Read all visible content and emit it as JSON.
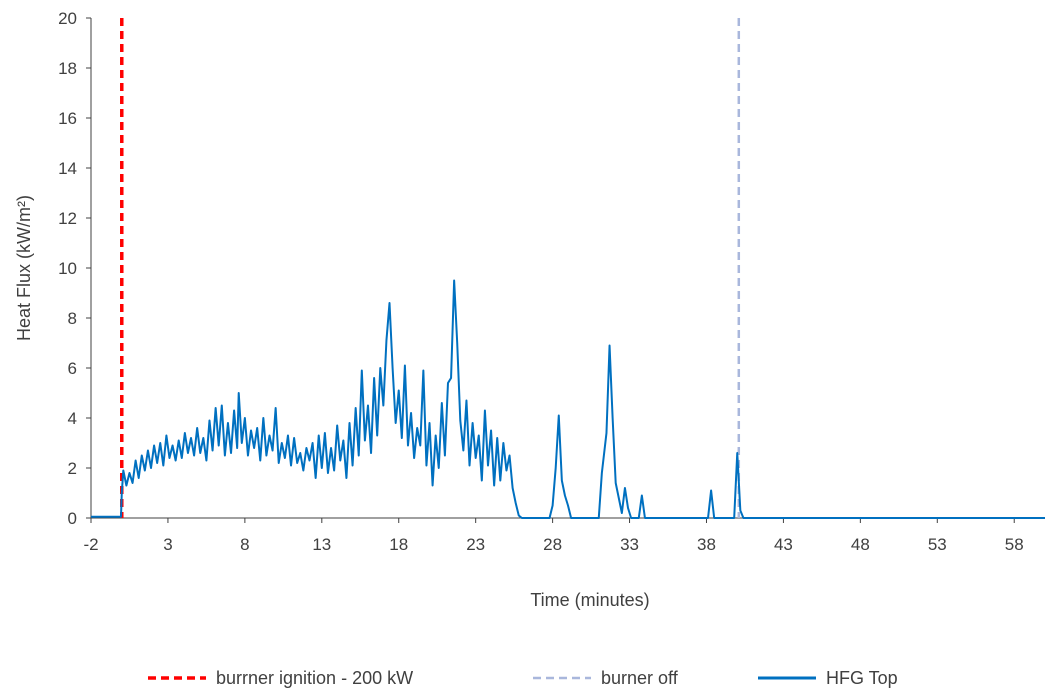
{
  "chart_data": {
    "type": "line",
    "xlabel": "Time (minutes)",
    "ylabel": "Heat Flux (kW/m²)",
    "xlim": [
      -2,
      60
    ],
    "ylim": [
      0,
      20
    ],
    "x_ticks": [
      "-2",
      "3",
      "8",
      "13",
      "18",
      "23",
      "28",
      "33",
      "38",
      "43",
      "48",
      "53",
      "58"
    ],
    "y_ticks": [
      "0",
      "2",
      "4",
      "6",
      "8",
      "10",
      "12",
      "14",
      "16",
      "18",
      "20"
    ],
    "grid": false,
    "legend_position": "bottom",
    "series": [
      {
        "name": "burrner ignition - 200 kW",
        "kind": "vline",
        "x": 0,
        "color": "#ff0000",
        "style": "dashed"
      },
      {
        "name": "burner off",
        "kind": "vline",
        "x": 40.1,
        "color": "#a9b7dc",
        "style": "dashed"
      },
      {
        "name": "HFG Top",
        "kind": "line",
        "color": "#0070c0",
        "style": "solid",
        "points": [
          [
            -2,
            0.05
          ],
          [
            -1,
            0.05
          ],
          [
            -0.05,
            0.05
          ],
          [
            0,
            1.0
          ],
          [
            0.1,
            1.9
          ],
          [
            0.3,
            1.3
          ],
          [
            0.5,
            1.8
          ],
          [
            0.7,
            1.4
          ],
          [
            0.9,
            2.3
          ],
          [
            1.1,
            1.6
          ],
          [
            1.3,
            2.5
          ],
          [
            1.5,
            1.9
          ],
          [
            1.7,
            2.7
          ],
          [
            1.9,
            2.0
          ],
          [
            2.1,
            2.9
          ],
          [
            2.3,
            2.2
          ],
          [
            2.5,
            3.0
          ],
          [
            2.7,
            2.1
          ],
          [
            2.9,
            3.3
          ],
          [
            3.1,
            2.4
          ],
          [
            3.3,
            2.9
          ],
          [
            3.5,
            2.3
          ],
          [
            3.7,
            3.1
          ],
          [
            3.9,
            2.4
          ],
          [
            4.1,
            3.4
          ],
          [
            4.3,
            2.6
          ],
          [
            4.5,
            3.2
          ],
          [
            4.7,
            2.5
          ],
          [
            4.9,
            3.6
          ],
          [
            5.1,
            2.6
          ],
          [
            5.3,
            3.2
          ],
          [
            5.5,
            2.3
          ],
          [
            5.7,
            3.9
          ],
          [
            5.9,
            2.7
          ],
          [
            6.1,
            4.4
          ],
          [
            6.3,
            2.9
          ],
          [
            6.5,
            4.5
          ],
          [
            6.7,
            2.5
          ],
          [
            6.9,
            3.8
          ],
          [
            7.1,
            2.6
          ],
          [
            7.3,
            4.3
          ],
          [
            7.5,
            2.8
          ],
          [
            7.6,
            5.0
          ],
          [
            7.8,
            3.0
          ],
          [
            8.0,
            4.0
          ],
          [
            8.2,
            2.5
          ],
          [
            8.4,
            3.5
          ],
          [
            8.6,
            2.8
          ],
          [
            8.8,
            3.6
          ],
          [
            9.0,
            2.3
          ],
          [
            9.2,
            4.0
          ],
          [
            9.4,
            2.5
          ],
          [
            9.6,
            3.3
          ],
          [
            9.8,
            2.7
          ],
          [
            10.0,
            4.4
          ],
          [
            10.2,
            2.2
          ],
          [
            10.4,
            3.0
          ],
          [
            10.6,
            2.4
          ],
          [
            10.8,
            3.3
          ],
          [
            11.0,
            2.1
          ],
          [
            11.2,
            3.2
          ],
          [
            11.4,
            2.2
          ],
          [
            11.6,
            2.6
          ],
          [
            11.8,
            1.9
          ],
          [
            12.0,
            2.8
          ],
          [
            12.2,
            2.3
          ],
          [
            12.4,
            3.0
          ],
          [
            12.6,
            1.6
          ],
          [
            12.8,
            3.3
          ],
          [
            13.0,
            2.0
          ],
          [
            13.2,
            3.4
          ],
          [
            13.4,
            1.8
          ],
          [
            13.6,
            2.8
          ],
          [
            13.8,
            1.9
          ],
          [
            14.0,
            3.7
          ],
          [
            14.2,
            2.3
          ],
          [
            14.4,
            3.1
          ],
          [
            14.6,
            1.6
          ],
          [
            14.8,
            3.8
          ],
          [
            15.0,
            2.1
          ],
          [
            15.2,
            4.4
          ],
          [
            15.4,
            2.5
          ],
          [
            15.6,
            5.9
          ],
          [
            15.8,
            3.1
          ],
          [
            16.0,
            4.5
          ],
          [
            16.2,
            2.6
          ],
          [
            16.4,
            5.6
          ],
          [
            16.6,
            3.3
          ],
          [
            16.8,
            6.0
          ],
          [
            17.0,
            4.5
          ],
          [
            17.2,
            7.1
          ],
          [
            17.4,
            8.6
          ],
          [
            17.6,
            6.0
          ],
          [
            17.8,
            3.8
          ],
          [
            18.0,
            5.1
          ],
          [
            18.2,
            3.2
          ],
          [
            18.4,
            6.1
          ],
          [
            18.6,
            2.9
          ],
          [
            18.8,
            4.2
          ],
          [
            19.0,
            2.4
          ],
          [
            19.2,
            3.6
          ],
          [
            19.4,
            2.9
          ],
          [
            19.6,
            5.9
          ],
          [
            19.8,
            2.1
          ],
          [
            20.0,
            3.8
          ],
          [
            20.2,
            1.3
          ],
          [
            20.4,
            3.3
          ],
          [
            20.6,
            2.0
          ],
          [
            20.8,
            4.6
          ],
          [
            21.0,
            2.5
          ],
          [
            21.2,
            5.4
          ],
          [
            21.4,
            5.6
          ],
          [
            21.6,
            9.5
          ],
          [
            21.8,
            7.0
          ],
          [
            22.0,
            3.9
          ],
          [
            22.2,
            2.7
          ],
          [
            22.4,
            4.7
          ],
          [
            22.6,
            2.1
          ],
          [
            22.8,
            3.8
          ],
          [
            23.0,
            2.4
          ],
          [
            23.2,
            3.3
          ],
          [
            23.4,
            1.5
          ],
          [
            23.6,
            4.3
          ],
          [
            23.8,
            2.1
          ],
          [
            24.0,
            3.5
          ],
          [
            24.2,
            1.3
          ],
          [
            24.4,
            3.2
          ],
          [
            24.6,
            1.5
          ],
          [
            24.8,
            3.0
          ],
          [
            25.0,
            1.9
          ],
          [
            25.2,
            2.5
          ],
          [
            25.4,
            1.2
          ],
          [
            25.6,
            0.6
          ],
          [
            25.8,
            0.1
          ],
          [
            26.0,
            0.0
          ],
          [
            27.8,
            0.0
          ],
          [
            28.0,
            0.5
          ],
          [
            28.2,
            2.0
          ],
          [
            28.4,
            4.1
          ],
          [
            28.6,
            1.5
          ],
          [
            28.8,
            0.9
          ],
          [
            29.0,
            0.5
          ],
          [
            29.2,
            0.0
          ],
          [
            31.0,
            0.0
          ],
          [
            31.2,
            1.8
          ],
          [
            31.5,
            3.4
          ],
          [
            31.7,
            6.9
          ],
          [
            31.9,
            4.0
          ],
          [
            32.1,
            1.4
          ],
          [
            32.3,
            0.8
          ],
          [
            32.5,
            0.2
          ],
          [
            32.7,
            1.2
          ],
          [
            32.9,
            0.4
          ],
          [
            33.1,
            0.0
          ],
          [
            33.6,
            0.0
          ],
          [
            33.8,
            0.9
          ],
          [
            34.0,
            0.0
          ],
          [
            38.1,
            0.0
          ],
          [
            38.3,
            1.1
          ],
          [
            38.5,
            0.0
          ],
          [
            39.8,
            0.0
          ],
          [
            40.0,
            2.6
          ],
          [
            40.2,
            0.3
          ],
          [
            40.4,
            0.0
          ],
          [
            60,
            0.0
          ]
        ]
      }
    ]
  }
}
